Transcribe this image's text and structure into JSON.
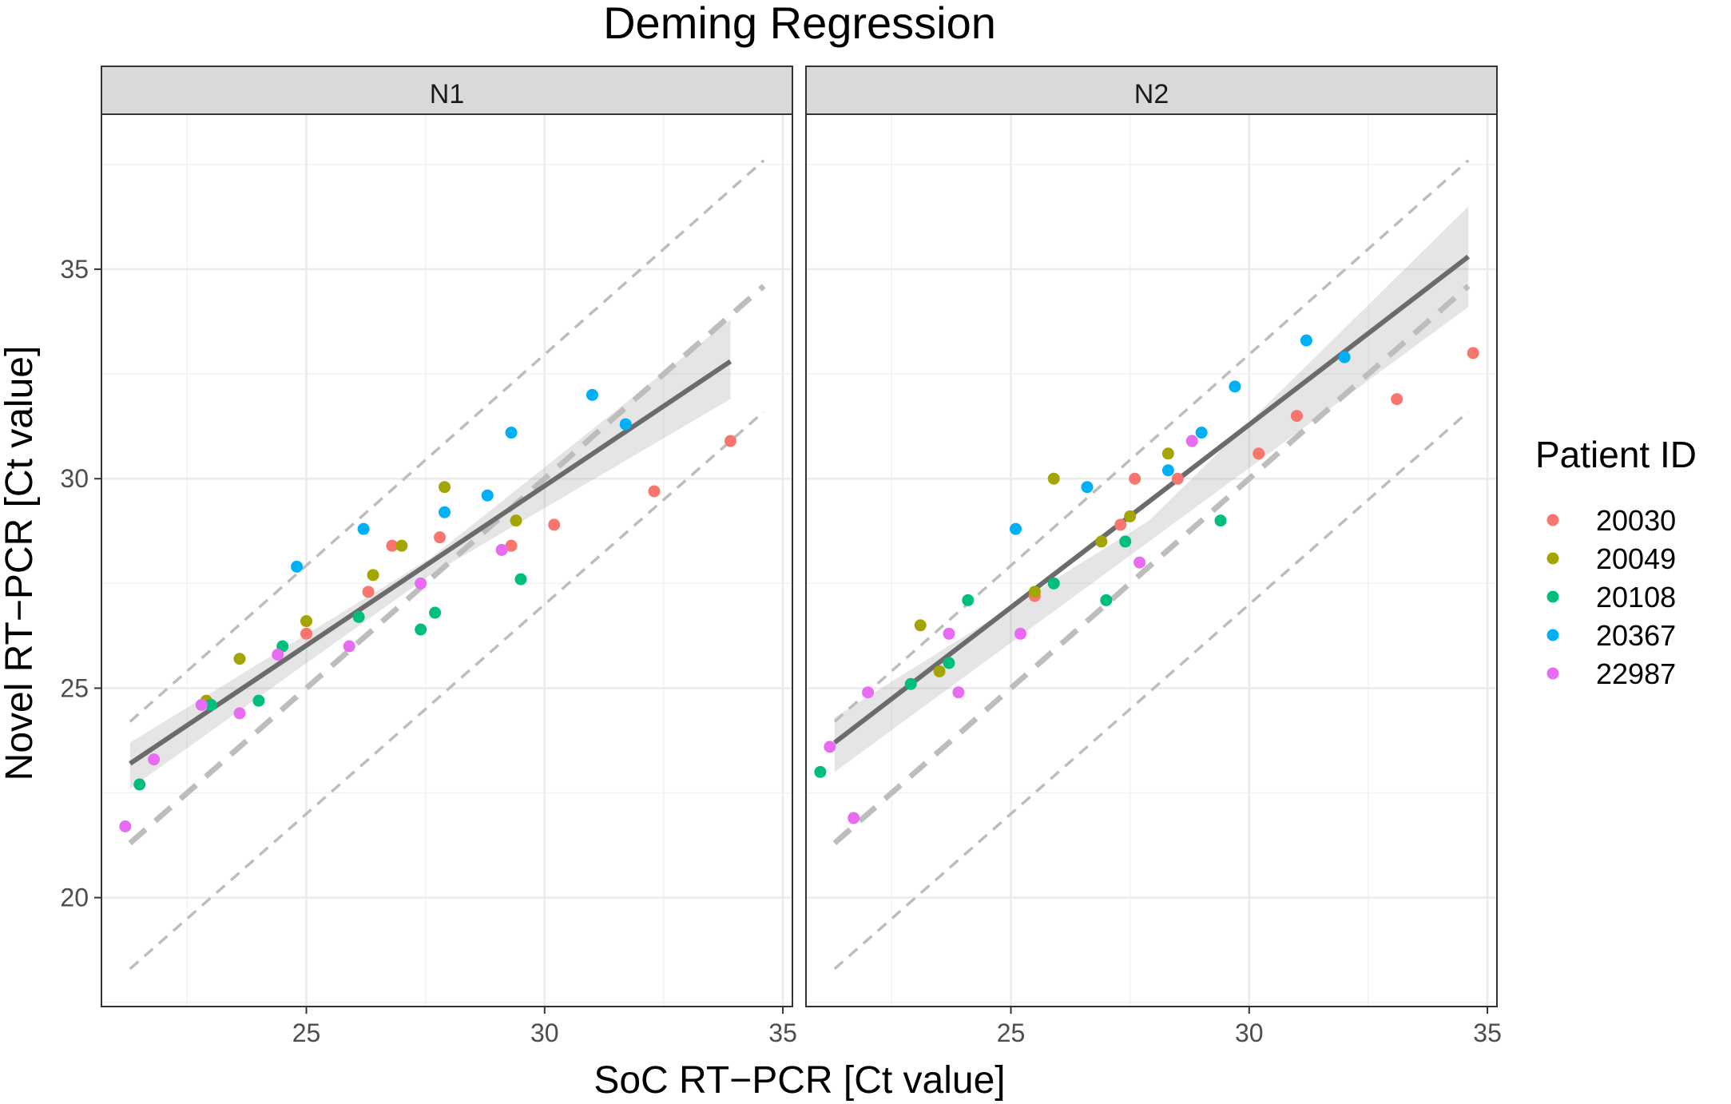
{
  "chart_data": {
    "type": "scatter",
    "title": "Deming Regression",
    "xlabel": "SoC RT−PCR [Ct value]",
    "ylabel": "Novel RT−PCR [Ct value]",
    "xlim": [
      20.7,
      35.2
    ],
    "ylim": [
      17.4,
      38.7
    ],
    "x_ticks": [
      25,
      30,
      35
    ],
    "y_ticks": [
      20,
      25,
      30,
      35
    ],
    "x_tick_labels": [
      "25",
      "30",
      "35"
    ],
    "y_tick_labels": [
      "20",
      "25",
      "30",
      "35"
    ],
    "grid": true,
    "legend_title": "Patient ID",
    "legend_position": "right",
    "series_colors": {
      "20030": "#F8766D",
      "20049": "#A3A500",
      "20108": "#00BF7D",
      "20367": "#00B0F6",
      "22987": "#E76BF3"
    },
    "series_names": [
      "20030",
      "20049",
      "20108",
      "20367",
      "22987"
    ],
    "facets": [
      {
        "label": "N1",
        "fit_line": {
          "x": [
            21.3,
            33.9
          ],
          "y": [
            23.2,
            32.8
          ]
        },
        "ci_band": {
          "x": [
            21.3,
            27.6,
            33.9
          ],
          "upper": [
            23.7,
            28.1,
            33.8
          ],
          "lower": [
            22.6,
            27.7,
            31.9
          ]
        },
        "identity_line": {
          "x": [
            21.3,
            34.6
          ],
          "y": [
            21.3,
            34.6
          ]
        },
        "upper_limit_line": {
          "x": [
            21.3,
            34.6
          ],
          "y": [
            24.2,
            37.6
          ]
        },
        "lower_limit_line": {
          "x": [
            21.3,
            34.6
          ],
          "y": [
            18.3,
            31.6
          ]
        },
        "points": [
          {
            "id": "20030",
            "x": 26.3,
            "y": 27.3
          },
          {
            "id": "20030",
            "x": 26.8,
            "y": 28.4
          },
          {
            "id": "20030",
            "x": 25.0,
            "y": 26.3
          },
          {
            "id": "20030",
            "x": 27.8,
            "y": 28.6
          },
          {
            "id": "20030",
            "x": 29.3,
            "y": 28.4
          },
          {
            "id": "20030",
            "x": 30.2,
            "y": 28.9
          },
          {
            "id": "20030",
            "x": 32.3,
            "y": 29.7
          },
          {
            "id": "20030",
            "x": 33.9,
            "y": 30.9
          },
          {
            "id": "20049",
            "x": 22.9,
            "y": 24.7
          },
          {
            "id": "20049",
            "x": 23.6,
            "y": 25.7
          },
          {
            "id": "20049",
            "x": 25.0,
            "y": 26.6
          },
          {
            "id": "20049",
            "x": 26.4,
            "y": 27.7
          },
          {
            "id": "20049",
            "x": 27.0,
            "y": 28.4
          },
          {
            "id": "20049",
            "x": 27.9,
            "y": 29.8
          },
          {
            "id": "20049",
            "x": 29.4,
            "y": 29.0
          },
          {
            "id": "20108",
            "x": 21.5,
            "y": 22.7
          },
          {
            "id": "20108",
            "x": 23.0,
            "y": 24.6
          },
          {
            "id": "20108",
            "x": 24.0,
            "y": 24.7
          },
          {
            "id": "20108",
            "x": 24.5,
            "y": 26.0
          },
          {
            "id": "20108",
            "x": 26.1,
            "y": 26.7
          },
          {
            "id": "20108",
            "x": 27.4,
            "y": 26.4
          },
          {
            "id": "20108",
            "x": 27.7,
            "y": 26.8
          },
          {
            "id": "20108",
            "x": 29.5,
            "y": 27.6
          },
          {
            "id": "20367",
            "x": 24.8,
            "y": 27.9
          },
          {
            "id": "20367",
            "x": 26.2,
            "y": 28.8
          },
          {
            "id": "20367",
            "x": 27.9,
            "y": 29.2
          },
          {
            "id": "20367",
            "x": 28.8,
            "y": 29.6
          },
          {
            "id": "20367",
            "x": 29.3,
            "y": 31.1
          },
          {
            "id": "20367",
            "x": 31.0,
            "y": 32.0
          },
          {
            "id": "20367",
            "x": 31.7,
            "y": 31.3
          },
          {
            "id": "22987",
            "x": 21.2,
            "y": 21.7
          },
          {
            "id": "22987",
            "x": 21.8,
            "y": 23.3
          },
          {
            "id": "22987",
            "x": 22.8,
            "y": 24.6
          },
          {
            "id": "22987",
            "x": 23.6,
            "y": 24.4
          },
          {
            "id": "22987",
            "x": 24.4,
            "y": 25.8
          },
          {
            "id": "22987",
            "x": 25.9,
            "y": 26.0
          },
          {
            "id": "22987",
            "x": 27.4,
            "y": 27.5
          },
          {
            "id": "22987",
            "x": 29.1,
            "y": 28.3
          }
        ]
      },
      {
        "label": "N2",
        "fit_line": {
          "x": [
            21.3,
            34.6
          ],
          "y": [
            23.7,
            35.3
          ]
        },
        "ci_band": {
          "x": [
            21.3,
            27.9,
            34.6
          ],
          "upper": [
            24.3,
            29.0,
            36.5
          ],
          "lower": [
            23.0,
            28.5,
            34.1
          ]
        },
        "identity_line": {
          "x": [
            21.3,
            34.6
          ],
          "y": [
            21.3,
            34.6
          ]
        },
        "upper_limit_line": {
          "x": [
            21.3,
            34.6
          ],
          "y": [
            24.2,
            37.6
          ]
        },
        "lower_limit_line": {
          "x": [
            21.3,
            34.6
          ],
          "y": [
            18.3,
            31.6
          ]
        },
        "points": [
          {
            "id": "20030",
            "x": 25.5,
            "y": 27.2
          },
          {
            "id": "20030",
            "x": 27.3,
            "y": 28.9
          },
          {
            "id": "20030",
            "x": 27.6,
            "y": 30.0
          },
          {
            "id": "20030",
            "x": 28.5,
            "y": 30.0
          },
          {
            "id": "20030",
            "x": 30.2,
            "y": 30.6
          },
          {
            "id": "20030",
            "x": 31.0,
            "y": 31.5
          },
          {
            "id": "20030",
            "x": 33.1,
            "y": 31.9
          },
          {
            "id": "20030",
            "x": 34.7,
            "y": 33.0
          },
          {
            "id": "20049",
            "x": 23.1,
            "y": 26.5
          },
          {
            "id": "20049",
            "x": 23.5,
            "y": 25.4
          },
          {
            "id": "20049",
            "x": 25.5,
            "y": 27.3
          },
          {
            "id": "20049",
            "x": 25.9,
            "y": 30.0
          },
          {
            "id": "20049",
            "x": 26.9,
            "y": 28.5
          },
          {
            "id": "20049",
            "x": 27.5,
            "y": 29.1
          },
          {
            "id": "20049",
            "x": 28.3,
            "y": 30.6
          },
          {
            "id": "20108",
            "x": 21.0,
            "y": 23.0
          },
          {
            "id": "20108",
            "x": 22.9,
            "y": 25.1
          },
          {
            "id": "20108",
            "x": 23.7,
            "y": 25.6
          },
          {
            "id": "20108",
            "x": 24.1,
            "y": 27.1
          },
          {
            "id": "20108",
            "x": 25.9,
            "y": 27.5
          },
          {
            "id": "20108",
            "x": 27.0,
            "y": 27.1
          },
          {
            "id": "20108",
            "x": 27.4,
            "y": 28.5
          },
          {
            "id": "20108",
            "x": 29.4,
            "y": 29.0
          },
          {
            "id": "20367",
            "x": 25.1,
            "y": 28.8
          },
          {
            "id": "20367",
            "x": 26.6,
            "y": 29.8
          },
          {
            "id": "20367",
            "x": 28.3,
            "y": 30.2
          },
          {
            "id": "20367",
            "x": 29.0,
            "y": 31.1
          },
          {
            "id": "20367",
            "x": 29.7,
            "y": 32.2
          },
          {
            "id": "20367",
            "x": 31.2,
            "y": 33.3
          },
          {
            "id": "20367",
            "x": 32.0,
            "y": 32.9
          },
          {
            "id": "22987",
            "x": 21.2,
            "y": 23.6
          },
          {
            "id": "22987",
            "x": 21.7,
            "y": 21.9
          },
          {
            "id": "22987",
            "x": 22.0,
            "y": 24.9
          },
          {
            "id": "22987",
            "x": 23.7,
            "y": 26.3
          },
          {
            "id": "22987",
            "x": 23.9,
            "y": 24.9
          },
          {
            "id": "22987",
            "x": 25.2,
            "y": 26.3
          },
          {
            "id": "22987",
            "x": 27.7,
            "y": 28.0
          },
          {
            "id": "22987",
            "x": 28.8,
            "y": 30.9
          }
        ]
      }
    ]
  }
}
